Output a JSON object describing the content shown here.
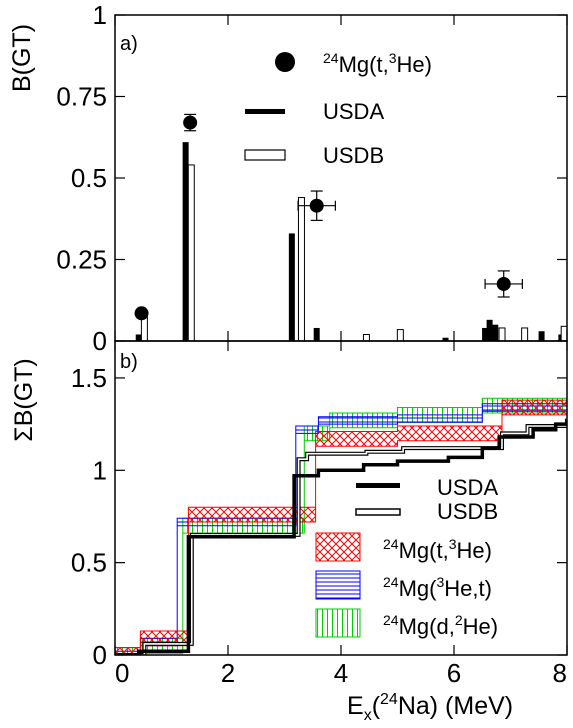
{
  "chart_data": [
    {
      "panel_label": "a)",
      "type": "bar",
      "ylabel": "B(GT)",
      "xlim": [
        0,
        8
      ],
      "ylim": [
        0,
        1
      ],
      "yticks": [
        0,
        0.25,
        0.5,
        0.75,
        1
      ],
      "ytick_labels": [
        "0",
        "0.25",
        "0.5",
        "0.75",
        "1"
      ],
      "legend_position": "top-right",
      "legend": [
        {
          "label_pre": "24",
          "label_main": "Mg(t,",
          "label_sup2": "3",
          "label_post": "He)",
          "style": "filled-circle"
        },
        {
          "label": "USDA",
          "style": "black-bar"
        },
        {
          "label": "USDB",
          "style": "open-bar"
        }
      ],
      "series": [
        {
          "name": "24Mg(t,3He)",
          "kind": "points",
          "points": [
            {
              "x": 0.47,
              "y": 0.085,
              "xerr": 0,
              "yerr": 0
            },
            {
              "x": 1.33,
              "y": 0.67,
              "xerr": 0,
              "yerr": 0.025
            },
            {
              "x": 3.57,
              "y": 0.415,
              "xerr": 0.33,
              "yerr": 0.045
            },
            {
              "x": 6.88,
              "y": 0.175,
              "xerr": 0.33,
              "yerr": 0.04
            }
          ]
        },
        {
          "name": "USDA",
          "kind": "bars",
          "x": [
            0.42,
            1.25,
            3.13,
            3.57,
            5.85,
            6.55,
            6.63,
            6.73,
            7.55,
            7.9
          ],
          "values": [
            0.02,
            0.61,
            0.33,
            0.04,
            0.01,
            0.04,
            0.065,
            0.05,
            0.03,
            0.02
          ]
        },
        {
          "name": "USDB",
          "kind": "bars",
          "x": [
            0.52,
            1.35,
            3.3,
            4.45,
            5.05,
            6.85,
            7.25,
            7.95
          ],
          "values": [
            0.08,
            0.54,
            0.44,
            0.02,
            0.035,
            0.04,
            0.04,
            0.045
          ]
        }
      ]
    },
    {
      "panel_label": "b)",
      "type": "line",
      "ylabel": "ΣB(GT)",
      "xlabel_pre": "E",
      "xlabel_sub": "x",
      "xlabel_mid1": "(",
      "xlabel_sup": "24",
      "xlabel_mid2": "Na) (MeV)",
      "xlim": [
        0,
        8
      ],
      "ylim": [
        0,
        1.7
      ],
      "xticks": [
        0,
        2,
        4,
        6,
        8
      ],
      "xtick_labels": [
        "0",
        "2",
        "4",
        "6",
        "8"
      ],
      "yticks": [
        0,
        0.5,
        1,
        1.5
      ],
      "ytick_labels": [
        "0",
        "0.5",
        "1",
        "1.5"
      ],
      "legend_position": "lower-right",
      "legend": [
        {
          "label": "USDA",
          "style": "thick-black-line"
        },
        {
          "label": "USDB",
          "style": "double-line"
        },
        {
          "label_pre": "24",
          "label_main": "Mg(t,",
          "label_sup2": "3",
          "label_post": "He)",
          "style": "red-crosshatch"
        },
        {
          "label_pre": "24",
          "label_main": "Mg(",
          "label_sup2": "3",
          "label_post": "He,t)",
          "style": "blue-horizontal-hatch"
        },
        {
          "label_pre": "24",
          "label_main": "Mg(d,",
          "label_sup2": "2",
          "label_post": "He)",
          "style": "green-vertical-hatch"
        }
      ],
      "series": [
        {
          "name": "USDA",
          "steps": [
            [
              0,
              0
            ],
            [
              0.42,
              0.02
            ],
            [
              1.3,
              0.64
            ],
            [
              3.17,
              0.97
            ],
            [
              3.6,
              1.0
            ],
            [
              4.4,
              1.03
            ],
            [
              5.0,
              1.05
            ],
            [
              5.9,
              1.07
            ],
            [
              6.5,
              1.12
            ],
            [
              6.8,
              1.18
            ],
            [
              7.4,
              1.22
            ],
            [
              7.8,
              1.25
            ],
            [
              8,
              1.27
            ]
          ]
        },
        {
          "name": "USDB",
          "steps": [
            [
              0,
              0
            ],
            [
              0.52,
              0.06
            ],
            [
              1.36,
              0.65
            ],
            [
              3.25,
              1.06
            ],
            [
              3.4,
              1.09
            ],
            [
              4.45,
              1.1
            ],
            [
              5.1,
              1.12
            ],
            [
              6.85,
              1.2
            ],
            [
              7.3,
              1.24
            ],
            [
              8,
              1.28
            ]
          ]
        },
        {
          "name": "24Mg(t,3He)",
          "steps": [
            [
              0,
              0
            ],
            [
              0.45,
              0.09
            ],
            [
              1.3,
              0.76
            ],
            [
              3.55,
              1.17
            ],
            [
              5.0,
              1.2
            ],
            [
              6.85,
              1.34
            ],
            [
              8,
              1.37
            ]
          ],
          "band": 0.04,
          "color": "#ff0000"
        },
        {
          "name": "24Mg(3He,t)",
          "steps": [
            [
              0,
              0
            ],
            [
              0.45,
              0.07
            ],
            [
              1.1,
              0.72
            ],
            [
              3.2,
              1.22
            ],
            [
              3.6,
              1.27
            ],
            [
              5.0,
              1.28
            ],
            [
              6.5,
              1.34
            ],
            [
              8,
              1.39
            ]
          ],
          "band": 0.02,
          "color": "#0000ff"
        },
        {
          "name": "24Mg(d,2He)",
          "steps": [
            [
              0,
              0
            ],
            [
              0.45,
              0.05
            ],
            [
              1.2,
              0.7
            ],
            [
              3.35,
              1.2
            ],
            [
              3.8,
              1.27
            ],
            [
              5.0,
              1.3
            ],
            [
              6.5,
              1.35
            ],
            [
              8,
              1.38
            ]
          ],
          "band": 0.04,
          "color": "#00cc00"
        }
      ]
    }
  ]
}
